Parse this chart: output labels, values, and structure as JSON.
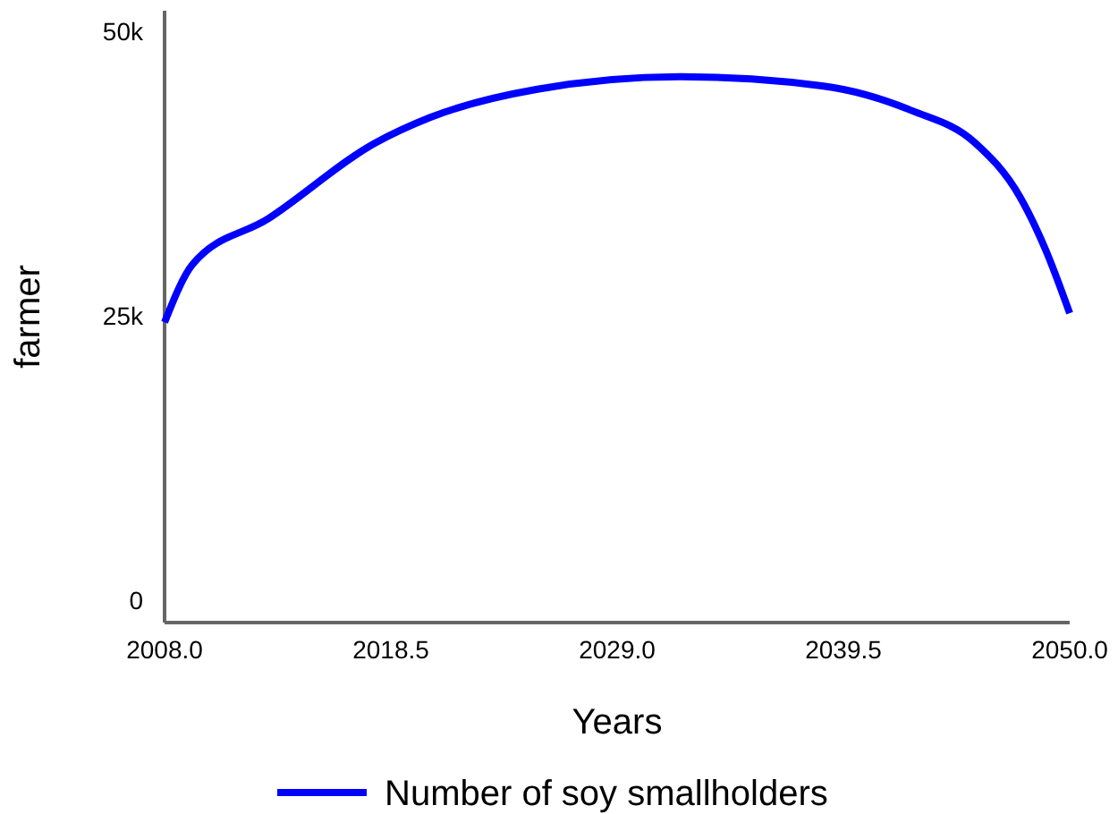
{
  "chart_data": {
    "type": "line",
    "xlabel": "Years",
    "ylabel": "farmer",
    "x": [
      2008,
      2009.3,
      2012.8,
      2017.8,
      2020.3,
      2025.3,
      2031.9,
      2038.5,
      2042.7,
      2045.6,
      2047.7,
      2048.9,
      2050
    ],
    "series": [
      {
        "name": "Number of soy smallholders",
        "color": "#0000ff",
        "values": [
          24500,
          29600,
          33600,
          40300,
          42500,
          45000,
          46100,
          45300,
          43100,
          40300,
          35500,
          30800,
          25300
        ]
      }
    ],
    "xlim": [
      2008,
      2050
    ],
    "xticks": [
      {
        "value": 2008,
        "label": "2008.0"
      },
      {
        "value": 2018.5,
        "label": "2018.5"
      },
      {
        "value": 2029,
        "label": "2029.0"
      },
      {
        "value": 2039.5,
        "label": "2039.5"
      },
      {
        "value": 2050,
        "label": "2050.0"
      }
    ],
    "ylim": [
      -1900,
      51900
    ],
    "yticks": [
      0,
      {
        "value": 25000,
        "label": "25k"
      },
      {
        "value": 50000,
        "label": "50k"
      }
    ],
    "legend": "bottom",
    "grid": false
  }
}
